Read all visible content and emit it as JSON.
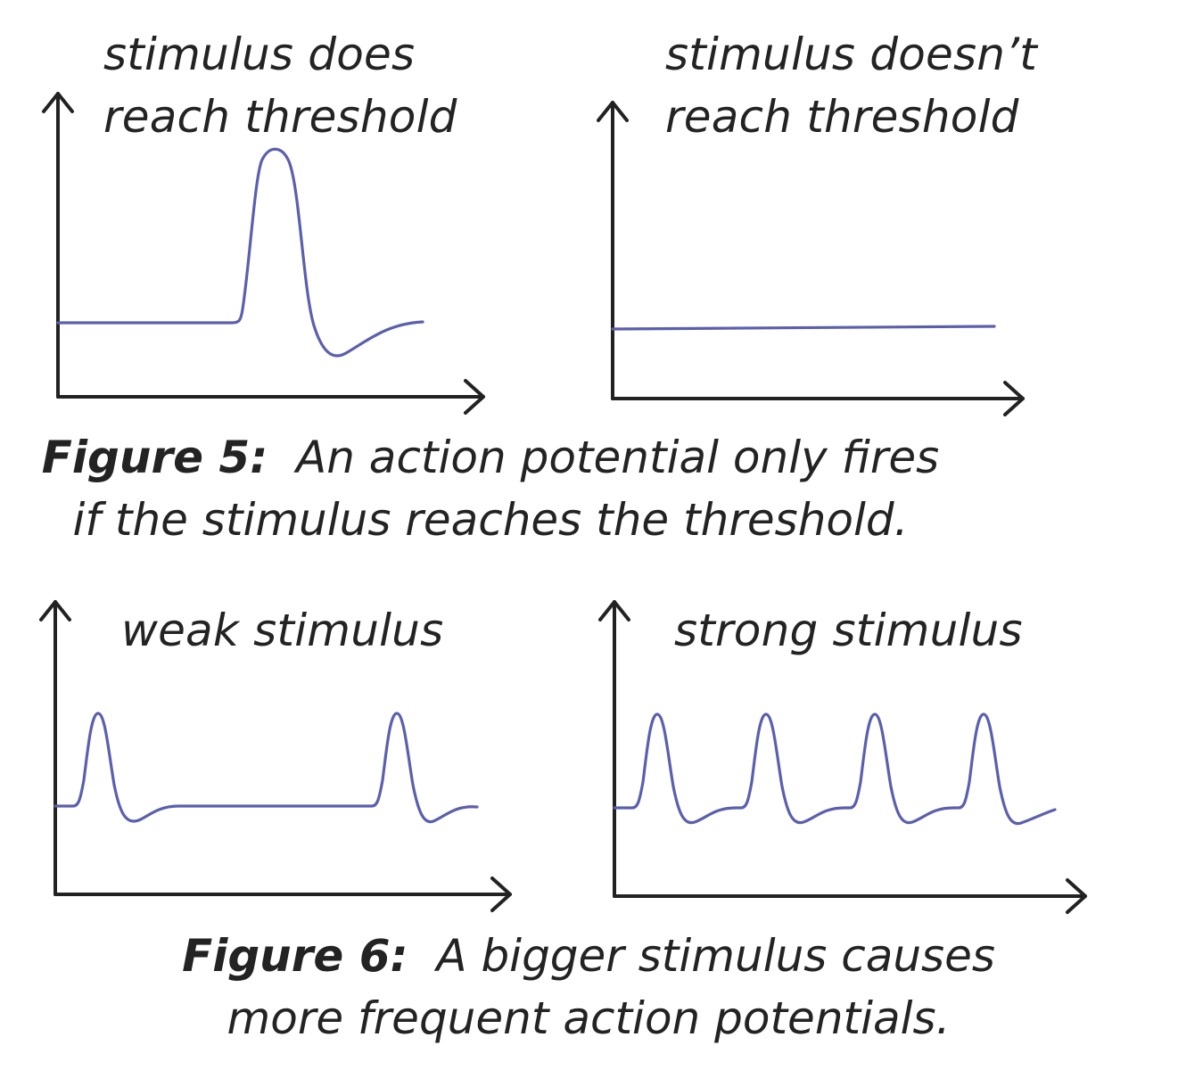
{
  "figure5": {
    "label": "Figure 5:",
    "caption_line1": "An action potential only fires",
    "caption_line2": "if the stimulus reaches the threshold.",
    "panels": [
      {
        "title": "stimulus does\nreach threshold"
      },
      {
        "title": "stimulus doesn’t\nreach threshold"
      }
    ]
  },
  "figure6": {
    "label": "Figure 6:",
    "caption_line1": "A bigger stimulus causes",
    "caption_line2": "more frequent action potentials.",
    "panels": [
      {
        "title": "weak stimulus"
      },
      {
        "title": "strong stimulus"
      }
    ]
  },
  "colors": {
    "trace": "#5a5fae",
    "axis": "#222222"
  }
}
